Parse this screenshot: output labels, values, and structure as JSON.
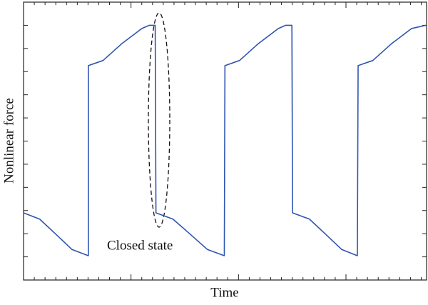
{
  "chart_data": {
    "type": "line",
    "xlabel": "Time",
    "ylabel": "Nonlinear force",
    "annotation": "Closed state",
    "x": [
      0,
      0.15,
      0.3,
      0.45,
      0.603,
      0.603,
      0.74,
      0.91,
      1.1,
      1.17,
      1.225,
      1.232,
      1.39,
      1.55,
      1.71,
      1.868,
      1.874,
      2.01,
      2.18,
      2.37,
      2.44,
      2.497,
      2.503,
      2.66,
      2.81,
      2.96,
      3.106,
      3.113,
      3.25,
      3.42,
      3.61,
      3.742
    ],
    "values": [
      2.9,
      2.63,
      1.98,
      1.32,
      1.05,
      9.26,
      9.48,
      10.19,
      10.86,
      11.0,
      11.0,
      2.9,
      2.63,
      1.98,
      1.32,
      1.05,
      9.26,
      9.48,
      10.19,
      10.86,
      11.0,
      11.0,
      2.9,
      2.63,
      1.98,
      1.32,
      1.05,
      9.26,
      9.48,
      10.19,
      10.86,
      11.0
    ],
    "color": "#2f54b0",
    "xlim": [
      0,
      3.75
    ],
    "ylim": [
      0,
      12
    ],
    "xticks": [
      0.1,
      0.2,
      0.3,
      0.4,
      0.5,
      0.6,
      0.7,
      0.8,
      0.9,
      1,
      1.1,
      1.2,
      1.3,
      1.4,
      1.5,
      1.6,
      1.7,
      1.8,
      1.9,
      2,
      2.1,
      2.2,
      2.3,
      2.4,
      2.5,
      2.6,
      2.7,
      2.8,
      2.9,
      3,
      3.1,
      3.2,
      3.3,
      3.4,
      3.5,
      3.6,
      3.7
    ],
    "yticks": [
      1,
      2,
      3,
      4,
      5,
      6,
      7,
      8,
      9,
      10,
      11
    ]
  }
}
